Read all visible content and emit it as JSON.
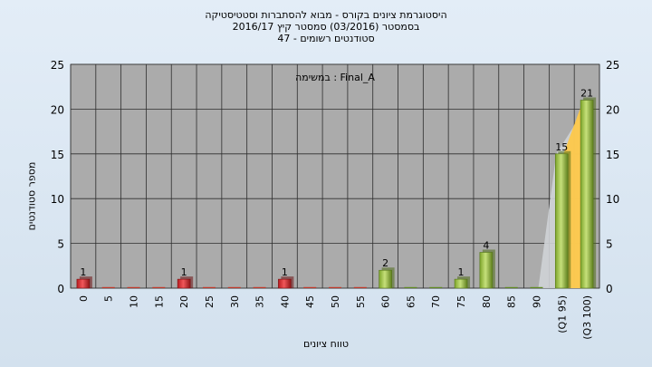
{
  "titles": {
    "line1": "היסטוגרמת ציונים בקורס - מבוא להסתברות וסטטיסטיקה",
    "line2": "בסמסטר  (03/2016)  סמסטר קיץ  2016/17",
    "line3": "סטודנטים רשומים - 47"
  },
  "colors": {
    "plot_bg": "#ababab",
    "bar_red": "#d8282d",
    "bar_green": "#96c03c",
    "area_gray": "#cfd3d6",
    "area_yellow": "#fdc84a"
  },
  "chart_data": {
    "type": "bar",
    "title": "היסטוגרמת ציונים בקורס - מבוא להסתברות וסטטיסטיקה",
    "inner_title": "במשימה : Final_A",
    "xlabel": "טווח ציונים",
    "ylabel": "מספר סטודנטים",
    "ylim": [
      0,
      25
    ],
    "yticks": [
      0,
      5,
      10,
      15,
      20,
      25
    ],
    "categories": [
      "0",
      "5",
      "10",
      "15",
      "20",
      "25",
      "30",
      "35",
      "40",
      "45",
      "50",
      "55",
      "60",
      "65",
      "70",
      "75",
      "80",
      "85",
      "90",
      "(Q1 95)",
      "(Q3 100)"
    ],
    "values": [
      1,
      0,
      0,
      0,
      1,
      0,
      0,
      0,
      1,
      0,
      0,
      0,
      2,
      0,
      0,
      1,
      4,
      0,
      0,
      15,
      21
    ],
    "bar_colors": [
      "red",
      "red",
      "red",
      "red",
      "red",
      "red",
      "red",
      "red",
      "red",
      "red",
      "red",
      "red",
      "green",
      "green",
      "green",
      "green",
      "green",
      "green",
      "green",
      "green",
      "green"
    ],
    "data_labels": [
      "1",
      "",
      "",
      "",
      "1",
      "",
      "",
      "",
      "1",
      "",
      "",
      "",
      "2",
      "",
      "",
      "1",
      "4",
      "",
      "",
      "15",
      "21"
    ],
    "grid": true,
    "secondary_y_axis": true
  }
}
